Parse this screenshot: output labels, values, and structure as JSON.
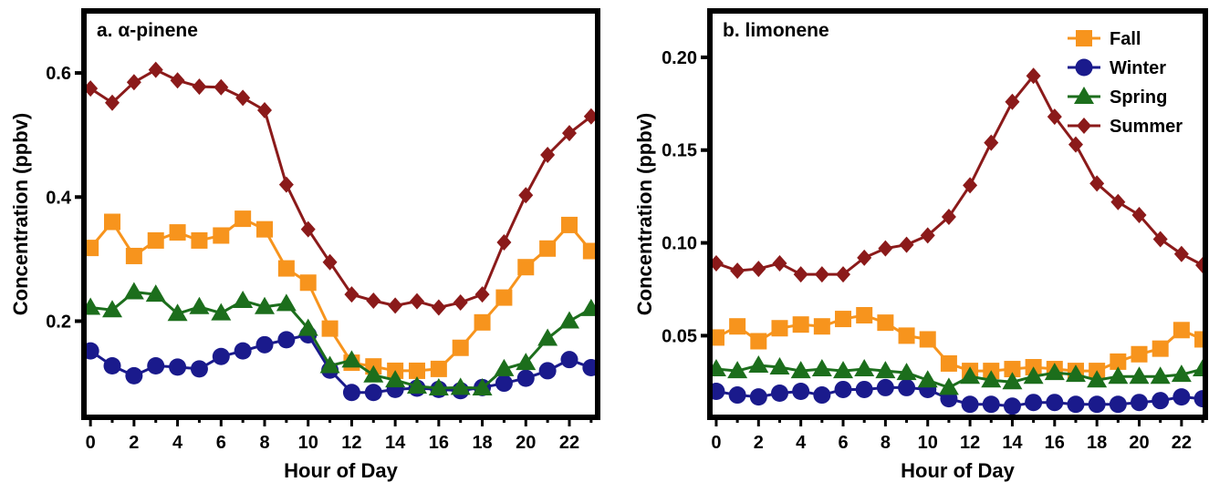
{
  "chart_data": [
    {
      "type": "line",
      "title": "a. α-pinene",
      "xlabel": "Hour of Day",
      "ylabel": "Concentration (ppbv)",
      "x": [
        0,
        1,
        2,
        3,
        4,
        5,
        6,
        7,
        8,
        9,
        10,
        11,
        12,
        13,
        14,
        15,
        16,
        17,
        18,
        19,
        20,
        21,
        22,
        23
      ],
      "xticks": [
        0,
        2,
        4,
        6,
        8,
        10,
        12,
        14,
        16,
        18,
        20,
        22
      ],
      "xlim": [
        -0.3,
        23.3
      ],
      "yticks": [
        0.2,
        0.4,
        0.6
      ],
      "ytick_labels": [
        "0.2",
        "0.4",
        "0.6"
      ],
      "ylim": [
        0.045,
        0.7
      ],
      "grid": false,
      "series": [
        {
          "name": "Fall",
          "color": "#f7941d",
          "marker": "square",
          "values": [
            0.318,
            0.36,
            0.305,
            0.33,
            0.343,
            0.33,
            0.338,
            0.365,
            0.348,
            0.285,
            0.262,
            0.188,
            0.133,
            0.127,
            0.12,
            0.12,
            0.123,
            0.157,
            0.198,
            0.238,
            0.287,
            0.317,
            0.355,
            0.313
          ]
        },
        {
          "name": "Winter",
          "color": "#1a1a8c",
          "marker": "circle",
          "values": [
            0.152,
            0.128,
            0.112,
            0.128,
            0.126,
            0.123,
            0.143,
            0.152,
            0.162,
            0.17,
            0.178,
            0.121,
            0.085,
            0.085,
            0.09,
            0.092,
            0.09,
            0.088,
            0.093,
            0.1,
            0.108,
            0.12,
            0.138,
            0.125
          ]
        },
        {
          "name": "Spring",
          "color": "#1c6e1c",
          "marker": "triangle",
          "values": [
            0.222,
            0.218,
            0.247,
            0.243,
            0.212,
            0.223,
            0.213,
            0.233,
            0.223,
            0.228,
            0.188,
            0.128,
            0.137,
            0.113,
            0.105,
            0.095,
            0.092,
            0.093,
            0.092,
            0.123,
            0.133,
            0.172,
            0.2,
            0.22
          ]
        },
        {
          "name": "Summer",
          "color": "#8b1a1a",
          "marker": "diamond",
          "values": [
            0.575,
            0.552,
            0.585,
            0.605,
            0.588,
            0.578,
            0.577,
            0.56,
            0.54,
            0.42,
            0.348,
            0.295,
            0.243,
            0.233,
            0.225,
            0.232,
            0.222,
            0.23,
            0.243,
            0.327,
            0.403,
            0.468,
            0.503,
            0.53
          ]
        }
      ]
    },
    {
      "type": "line",
      "title": "b. limonene",
      "xlabel": "Hour of Day",
      "ylabel": "Concentration (ppbv)",
      "x": [
        0,
        1,
        2,
        3,
        4,
        5,
        6,
        7,
        8,
        9,
        10,
        11,
        12,
        13,
        14,
        15,
        16,
        17,
        18,
        19,
        20,
        21,
        22,
        23
      ],
      "xticks": [
        0,
        2,
        4,
        6,
        8,
        10,
        12,
        14,
        16,
        18,
        20,
        22
      ],
      "xlim": [
        -0.3,
        23.3
      ],
      "yticks": [
        0.05,
        0.1,
        0.15,
        0.2
      ],
      "ytick_labels": [
        "0.05",
        "0.10",
        "0.15",
        "0.20"
      ],
      "ylim": [
        0.006,
        0.225
      ],
      "grid": false,
      "legend": {
        "placement": "top-right",
        "entries": [
          "Fall",
          "Winter",
          "Spring",
          "Summer"
        ]
      },
      "series": [
        {
          "name": "Fall",
          "color": "#f7941d",
          "marker": "square",
          "values": [
            0.049,
            0.055,
            0.047,
            0.054,
            0.056,
            0.055,
            0.059,
            0.061,
            0.057,
            0.05,
            0.048,
            0.035,
            0.031,
            0.031,
            0.032,
            0.033,
            0.032,
            0.031,
            0.031,
            0.036,
            0.04,
            0.043,
            0.053,
            0.048
          ]
        },
        {
          "name": "Winter",
          "color": "#1a1a8c",
          "marker": "circle",
          "values": [
            0.02,
            0.018,
            0.017,
            0.019,
            0.02,
            0.018,
            0.021,
            0.021,
            0.022,
            0.022,
            0.021,
            0.016,
            0.013,
            0.013,
            0.012,
            0.014,
            0.014,
            0.013,
            0.013,
            0.013,
            0.014,
            0.015,
            0.017,
            0.016
          ]
        },
        {
          "name": "Spring",
          "color": "#1c6e1c",
          "marker": "triangle",
          "values": [
            0.032,
            0.031,
            0.034,
            0.033,
            0.031,
            0.032,
            0.031,
            0.032,
            0.031,
            0.03,
            0.026,
            0.022,
            0.028,
            0.026,
            0.025,
            0.028,
            0.03,
            0.029,
            0.026,
            0.028,
            0.028,
            0.028,
            0.029,
            0.032
          ]
        },
        {
          "name": "Summer",
          "color": "#8b1a1a",
          "marker": "diamond",
          "values": [
            0.089,
            0.085,
            0.086,
            0.089,
            0.083,
            0.083,
            0.083,
            0.092,
            0.097,
            0.099,
            0.104,
            0.114,
            0.131,
            0.154,
            0.176,
            0.19,
            0.168,
            0.153,
            0.132,
            0.122,
            0.115,
            0.102,
            0.094,
            0.088
          ]
        }
      ]
    }
  ]
}
